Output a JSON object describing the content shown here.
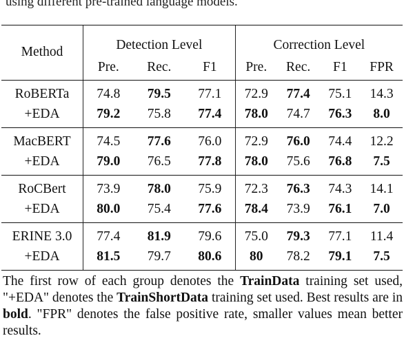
{
  "caption_fragment": "using different pre-trained language models.",
  "table": {
    "method_header": "Method",
    "group_headers": [
      "Detection Level",
      "Correction Level"
    ],
    "column_headers": [
      "Pre.",
      "Rec.",
      "F1",
      "Pre.",
      "Rec.",
      "F1",
      "FPR"
    ],
    "rows": [
      {
        "method": "RoBERTa",
        "values": [
          "74.8",
          "79.5",
          "77.1",
          "72.9",
          "77.4",
          "75.1",
          "14.3"
        ],
        "bold": [
          false,
          true,
          false,
          false,
          true,
          false,
          false
        ]
      },
      {
        "method": "+EDA",
        "values": [
          "79.2",
          "75.8",
          "77.4",
          "78.0",
          "74.7",
          "76.3",
          "8.0"
        ],
        "bold": [
          true,
          false,
          true,
          true,
          false,
          true,
          true
        ]
      },
      {
        "method": "MacBERT",
        "values": [
          "74.5",
          "77.6",
          "76.0",
          "72.9",
          "76.0",
          "74.4",
          "12.2"
        ],
        "bold": [
          false,
          true,
          false,
          false,
          true,
          false,
          false
        ]
      },
      {
        "method": "+EDA",
        "values": [
          "79.0",
          "76.5",
          "77.8",
          "78.0",
          "75.6",
          "76.8",
          "7.5"
        ],
        "bold": [
          true,
          false,
          true,
          true,
          false,
          true,
          true
        ]
      },
      {
        "method": "RoCBert",
        "values": [
          "73.9",
          "78.0",
          "75.9",
          "72.3",
          "76.3",
          "74.3",
          "14.1"
        ],
        "bold": [
          false,
          true,
          false,
          false,
          true,
          false,
          false
        ]
      },
      {
        "method": "+EDA",
        "values": [
          "80.0",
          "75.4",
          "77.6",
          "78.4",
          "73.9",
          "76.1",
          "7.0"
        ],
        "bold": [
          true,
          false,
          true,
          true,
          false,
          true,
          true
        ]
      },
      {
        "method": "ERINE 3.0",
        "values": [
          "77.4",
          "81.9",
          "79.6",
          "75.0",
          "79.3",
          "77.1",
          "11.4"
        ],
        "bold": [
          false,
          true,
          false,
          false,
          true,
          false,
          false
        ]
      },
      {
        "method": "+EDA",
        "values": [
          "81.5",
          "79.7",
          "80.6",
          "80",
          "78.2",
          "79.1",
          "7.5"
        ],
        "bold": [
          true,
          false,
          true,
          true,
          false,
          true,
          true
        ]
      }
    ]
  },
  "footnote": {
    "t1": "The first row of each group denotes the ",
    "b1": "TrainData",
    "t2": " training set used, \"+EDA\" denotes the ",
    "b2": "TrainShortData",
    "t3": " training set used. Best results are in ",
    "b3": "bold",
    "t4": ". \"FPR\" denotes the false positive rate, smaller values mean better results."
  }
}
